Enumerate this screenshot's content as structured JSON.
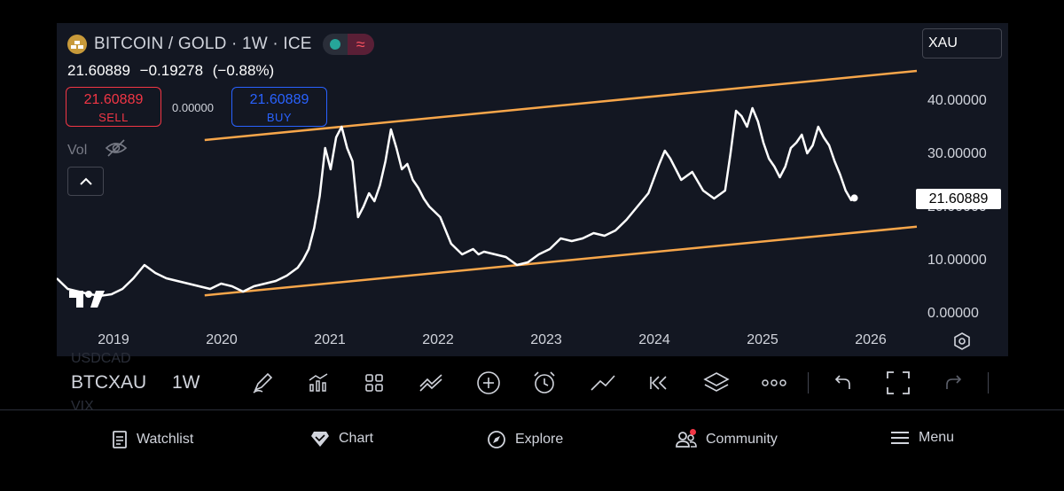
{
  "chart": {
    "title": "BITCOIN / GOLD · 1W · ICE",
    "last_price": "21.60889",
    "change": "−0.19278",
    "change_pct": "(−0.88%)",
    "sell": {
      "price": "21.60889",
      "label": "SELL"
    },
    "buy": {
      "price": "21.60889",
      "label": "BUY"
    },
    "spread": "0.00000",
    "vol_label": "Vol",
    "search_value": "XAU",
    "price_tag": "21.60889",
    "y_ticks": [
      "40.00000",
      "30.00000",
      "20.00000",
      "10.00000",
      "0.00000"
    ],
    "x_ticks": [
      "2019",
      "2020",
      "2021",
      "2022",
      "2023",
      "2024",
      "2025",
      "2026"
    ]
  },
  "chart_data": {
    "type": "line",
    "title": "BITCOIN / GOLD · 1W · ICE",
    "ylim": [
      -1,
      44
    ],
    "xlim": [
      2018.6,
      2026.45
    ],
    "colors": {
      "series": "#ffffff",
      "channel": "#f7a64a"
    },
    "series": [
      {
        "x": [
          2018.6,
          2018.7,
          2018.8,
          2018.9,
          2019.0,
          2019.1,
          2019.2,
          2019.3,
          2019.4,
          2019.5,
          2019.6,
          2019.7,
          2019.8,
          2019.9,
          2020.0,
          2020.1,
          2020.2,
          2020.3,
          2020.4,
          2020.5,
          2020.6,
          2020.7,
          2020.8,
          2020.85,
          2020.9,
          2020.95,
          2021.0,
          2021.05,
          2021.1,
          2021.15,
          2021.2,
          2021.25,
          2021.3,
          2021.35,
          2021.4,
          2021.45,
          2021.5,
          2021.55,
          2021.6,
          2021.65,
          2021.7,
          2021.75,
          2021.8,
          2021.85,
          2021.9,
          2021.95,
          2022.0,
          2022.1,
          2022.2,
          2022.3,
          2022.4,
          2022.45,
          2022.5,
          2022.6,
          2022.7,
          2022.8,
          2022.9,
          2023.0,
          2023.1,
          2023.2,
          2023.3,
          2023.4,
          2023.5,
          2023.6,
          2023.7,
          2023.8,
          2023.9,
          2024.0,
          2024.1,
          2024.15,
          2024.2,
          2024.25,
          2024.3,
          2024.4,
          2024.5,
          2024.6,
          2024.7,
          2024.75,
          2024.8,
          2024.85,
          2024.9,
          2024.95,
          2025.0,
          2025.05,
          2025.1,
          2025.15,
          2025.2,
          2025.25,
          2025.3,
          2025.35,
          2025.4,
          2025.45,
          2025.5,
          2025.55,
          2025.6,
          2025.65,
          2025.7,
          2025.75,
          2025.8,
          2025.85,
          2025.88
        ],
        "y": [
          6.5,
          4.5,
          4.0,
          3.5,
          3.2,
          3.5,
          4.5,
          6.5,
          9.0,
          7.5,
          6.5,
          6.0,
          5.5,
          5.0,
          4.5,
          5.5,
          5.0,
          4.0,
          5.0,
          5.5,
          6.0,
          7.0,
          8.5,
          10.0,
          12.0,
          16.0,
          22.0,
          31.0,
          27.0,
          33.0,
          35.0,
          31.0,
          28.5,
          18.0,
          20.0,
          22.5,
          21.0,
          24.0,
          28.5,
          34.5,
          31.0,
          27.0,
          28.0,
          25.0,
          23.5,
          21.5,
          20.0,
          18.0,
          13.0,
          11.0,
          12.0,
          11.0,
          11.5,
          11.0,
          10.5,
          9.0,
          9.5,
          11.0,
          12.0,
          14.0,
          13.5,
          14.0,
          15.0,
          14.5,
          15.5,
          17.5,
          20.0,
          22.5,
          28.0,
          30.5,
          29.0,
          27.0,
          25.0,
          26.5,
          23.0,
          21.5,
          23.0,
          30.0,
          38.0,
          37.0,
          35.0,
          38.5,
          36.0,
          32.0,
          29.0,
          27.5,
          25.5,
          27.5,
          31.0,
          32.0,
          33.5,
          30.0,
          31.5,
          35.0,
          33.0,
          31.5,
          28.5,
          26.0,
          23.0,
          21.2,
          21.6
        ]
      }
    ],
    "channel_lines": [
      {
        "x": [
          2019.95,
          2026.45
        ],
        "y": [
          3.3,
          16.2
        ]
      },
      {
        "x": [
          2019.95,
          2026.45
        ],
        "y": [
          32.5,
          45.5
        ]
      }
    ]
  },
  "toolbar": {
    "symbol": "BTCXAU",
    "interval": "1W",
    "ghost_top": "USDCAD",
    "ghost_bottom": "VIX",
    "icons": [
      "pen-icon",
      "indicators-icon",
      "grid-icon",
      "compare-icon",
      "add-icon",
      "alarm-icon",
      "line-tool-icon",
      "replay-icon",
      "layers-icon",
      "more-icon",
      "undo-icon",
      "fullscreen-icon",
      "redo-icon"
    ]
  },
  "nav": {
    "watchlist": "Watchlist",
    "chart": "Chart",
    "explore": "Explore",
    "community": "Community",
    "menu": "Menu"
  }
}
